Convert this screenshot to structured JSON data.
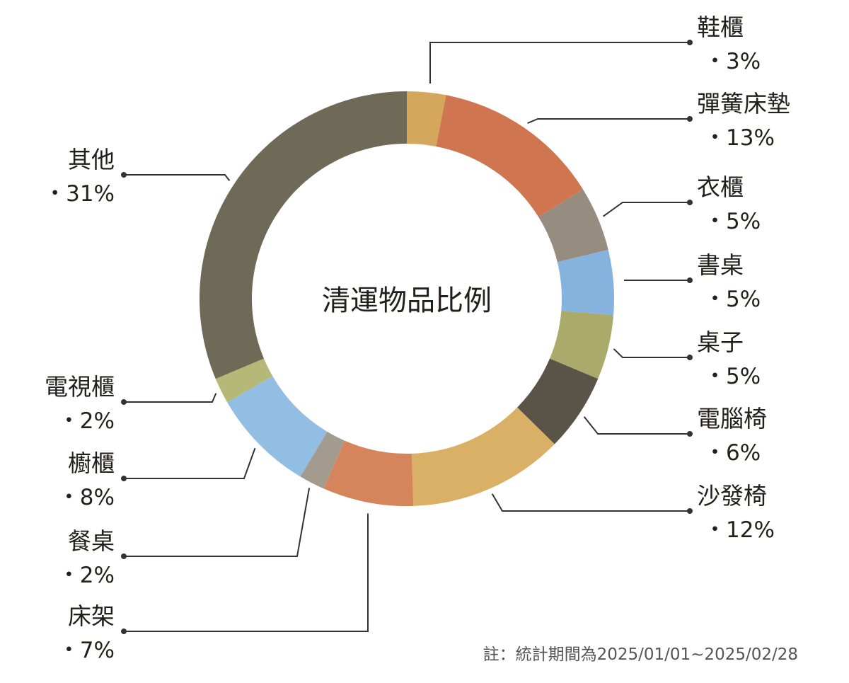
{
  "chart_data": {
    "type": "pie",
    "title": "清運物品比例",
    "note": "註：統計期間為2025/01/01~2025/02/28",
    "slices": [
      {
        "label": "鞋櫃",
        "value": 3,
        "value_label": "・3%",
        "color": "#d4a75c"
      },
      {
        "label": "彈簧床墊",
        "value": 13,
        "value_label": "・13%",
        "color": "#cf7550"
      },
      {
        "label": "衣櫃",
        "value": 5,
        "value_label": "・5%",
        "color": "#968d80"
      },
      {
        "label": "書桌",
        "value": 5,
        "value_label": "・5%",
        "color": "#86b3dd"
      },
      {
        "label": "桌子",
        "value": 5,
        "value_label": "・5%",
        "color": "#aaab6b"
      },
      {
        "label": "電腦椅",
        "value": 6,
        "value_label": "・6%",
        "color": "#5a5448"
      },
      {
        "label": "沙發椅",
        "value": 12,
        "value_label": "・12%",
        "color": "#dab066"
      },
      {
        "label": "床架",
        "value": 7,
        "value_label": "・7%",
        "color": "#d6845c"
      },
      {
        "label": "餐桌",
        "value": 2,
        "value_label": "・2%",
        "color": "#a39b8d"
      },
      {
        "label": "櫥櫃",
        "value": 8,
        "value_label": "・8%",
        "color": "#92bee4"
      },
      {
        "label": "電視櫃",
        "value": 2,
        "value_label": "・2%",
        "color": "#b6b878"
      },
      {
        "label": "其他",
        "value": 31,
        "value_label": "・31%",
        "color": "#6f6a58"
      }
    ]
  }
}
